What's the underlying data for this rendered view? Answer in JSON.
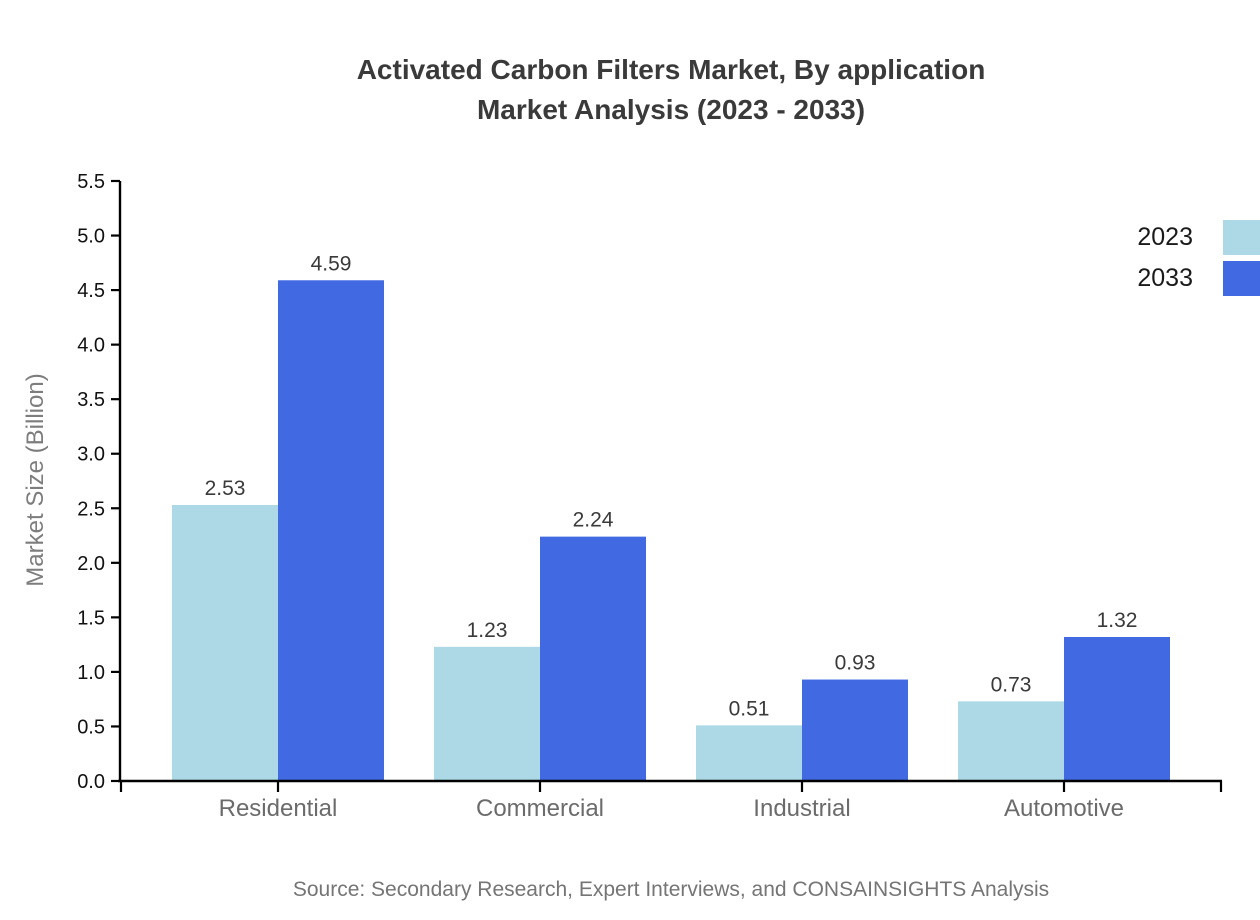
{
  "chart_data": {
    "type": "bar",
    "title_lines": [
      "Activated Carbon Filters Market, By application",
      "Market Analysis (2023 - 2033)"
    ],
    "categories": [
      "Residential",
      "Commercial",
      "Industrial",
      "Automotive"
    ],
    "series": [
      {
        "name": "2023",
        "color": "#ADD8E6",
        "values": [
          2.53,
          1.23,
          0.51,
          0.73
        ]
      },
      {
        "name": "2033",
        "color": "#4169E1",
        "values": [
          4.59,
          2.24,
          0.93,
          1.32
        ]
      }
    ],
    "xlabel": "",
    "ylabel": "Market Size (Billion)",
    "ylim": [
      0,
      5.5
    ],
    "ytick_step": 0.5,
    "grid": false,
    "legend_position": "top-right",
    "value_labels": true,
    "axis_color": "#000000",
    "source": "Source: Secondary Research, Expert Interviews, and CONSAINSIGHTS Analysis"
  }
}
